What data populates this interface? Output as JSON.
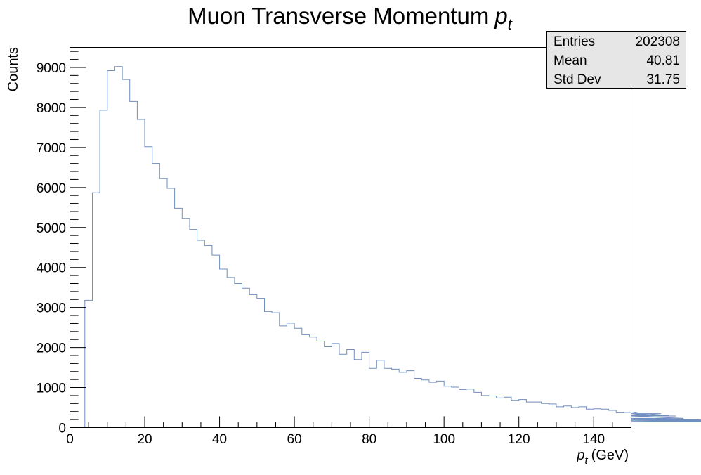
{
  "chart_data": {
    "type": "histogram",
    "title": "Muon Transverse Momentum",
    "title_symbol": "p",
    "title_subscript": "t",
    "xlabel_symbol": "p",
    "xlabel_subscript": "t",
    "xlabel_unit": "(GeV)",
    "ylabel": "Counts",
    "xlim": [
      0,
      150
    ],
    "ylim": [
      0,
      9500
    ],
    "bin_width": 2,
    "bin_start": 2,
    "x_ticks": [
      "0",
      "20",
      "40",
      "60",
      "80",
      "100",
      "120",
      "140"
    ],
    "y_ticks": [
      "0",
      "1000",
      "2000",
      "3000",
      "4000",
      "5000",
      "6000",
      "7000",
      "8000",
      "9000"
    ],
    "line_color": "#6f8fbf",
    "grid": false,
    "legend": "none",
    "values": [
      0,
      3180,
      5870,
      7930,
      8920,
      9020,
      8700,
      8150,
      7700,
      7020,
      6600,
      6220,
      5980,
      5480,
      5230,
      4950,
      4680,
      4550,
      4310,
      3960,
      3750,
      3600,
      3480,
      3320,
      3230,
      2900,
      2870,
      2540,
      2610,
      2480,
      2320,
      2260,
      2160,
      2020,
      2100,
      1830,
      1950,
      1700,
      1880,
      1480,
      1680,
      1480,
      1460,
      1380,
      1420,
      1230,
      1190,
      1130,
      1160,
      1030,
      1010,
      950,
      960,
      880,
      800,
      790,
      740,
      760,
      680,
      700,
      640,
      640,
      600,
      590,
      520,
      540,
      500,
      520,
      460,
      470,
      460,
      430,
      370,
      380,
      390,
      350,
      350,
      290,
      350,
      300,
      290,
      230,
      200,
      200,
      190,
      180,
      170,
      160,
      150,
      140
    ]
  },
  "stats_box": {
    "entries_label": "Entries",
    "entries_value": "202308",
    "mean_label": "Mean",
    "mean_value": "40.81",
    "std_label": "Std Dev",
    "std_value": "31.75"
  }
}
